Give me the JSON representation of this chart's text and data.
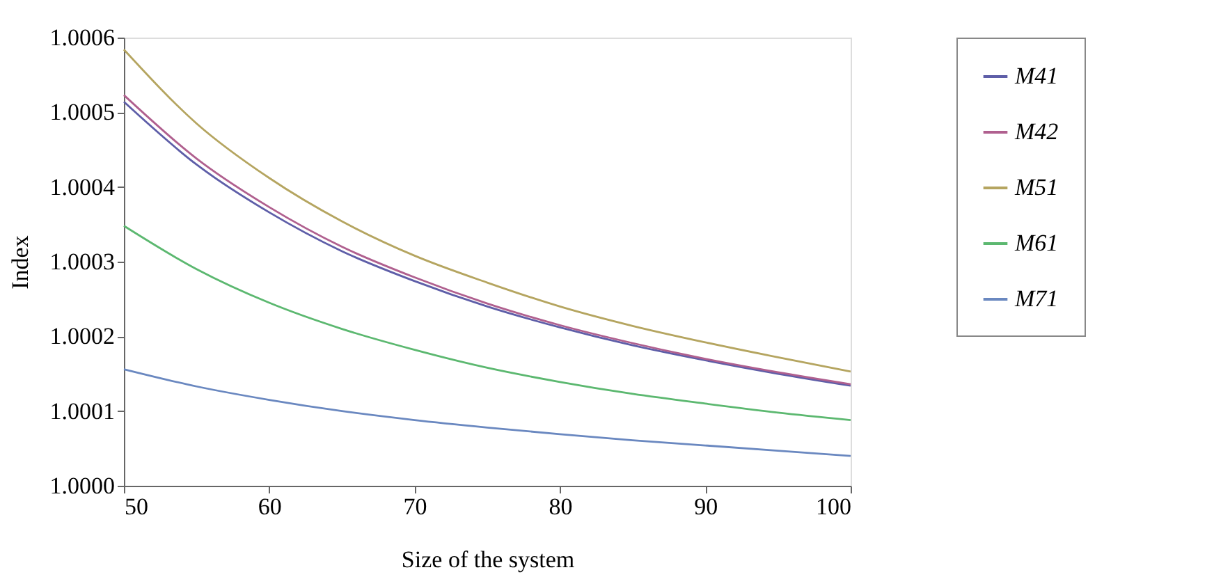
{
  "chart_data": {
    "type": "line",
    "xlabel": "Size of the system",
    "ylabel": "Index",
    "x": [
      50,
      55,
      60,
      65,
      70,
      75,
      80,
      85,
      90,
      95,
      100
    ],
    "xlim": [
      50,
      100
    ],
    "xticks": [
      50,
      60,
      70,
      80,
      90,
      100
    ],
    "ylim": [
      1.0,
      1.0006
    ],
    "yticks": [
      {
        "value": 1.0,
        "label": "1.0000"
      },
      {
        "value": 1.0001,
        "label": "1.0001"
      },
      {
        "value": 1.0002,
        "label": "1.0002"
      },
      {
        "value": 1.0003,
        "label": "1.0003"
      },
      {
        "value": 1.0004,
        "label": "1.0004"
      },
      {
        "value": 1.0005,
        "label": "1.0005"
      },
      {
        "value": 1.0006,
        "label": "1.0006"
      }
    ],
    "series": [
      {
        "name": "M41",
        "color": "#5e5ea8",
        "values": [
          1.000514,
          1.00043,
          1.000366,
          1.000314,
          1.000274,
          1.00024,
          1.000212,
          1.000188,
          1.000168,
          1.00015,
          1.000134
        ]
      },
      {
        "name": "M42",
        "color": "#b0608f",
        "values": [
          1.000523,
          1.000438,
          1.000373,
          1.00032,
          1.000279,
          1.000244,
          1.000215,
          1.000191,
          1.00017,
          1.000152,
          1.000136
        ]
      },
      {
        "name": "M51",
        "color": "#b5a560",
        "values": [
          1.000584,
          1.000485,
          1.000412,
          1.000354,
          1.000308,
          1.000272,
          1.00024,
          1.000214,
          1.000192,
          1.000172,
          1.000153
        ]
      },
      {
        "name": "M61",
        "color": "#5cb870",
        "values": [
          1.000348,
          1.00029,
          1.000245,
          1.00021,
          1.000182,
          1.000158,
          1.000139,
          1.000123,
          1.00011,
          1.000098,
          1.000088
        ]
      },
      {
        "name": "M71",
        "color": "#6a88c0",
        "values": [
          1.000156,
          1.000133,
          1.000115,
          1.0001,
          1.000088,
          1.000078,
          1.000069,
          1.000061,
          1.000054,
          1.000047,
          1.00004
        ]
      }
    ],
    "legend": "right",
    "grid": false,
    "marker": "none",
    "line_style": "solid"
  }
}
